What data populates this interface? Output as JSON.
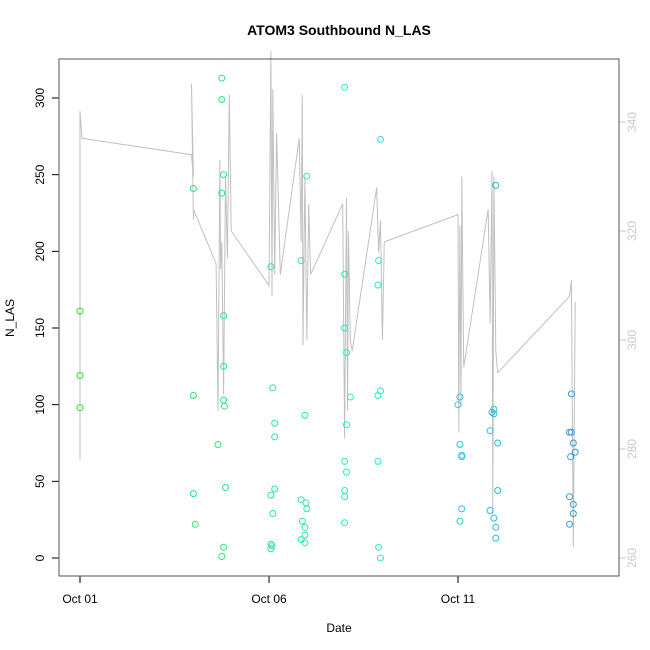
{
  "chart_data": {
    "type": "scatter",
    "title": "ATOM3 Southbound N_LAS",
    "xlabel": "Date",
    "ylabel": "N_LAS",
    "x_ticks": [
      {
        "day": 1,
        "label": "Oct 01"
      },
      {
        "day": 6,
        "label": "Oct 06"
      },
      {
        "day": 11,
        "label": "Oct 11"
      }
    ],
    "xlim": [
      1,
      15.5
    ],
    "ylim": [
      0,
      320
    ],
    "y_ticks": [
      0,
      50,
      100,
      150,
      200,
      250,
      300
    ],
    "y2lim": [
      260,
      344
    ],
    "y2_ticks": [
      260,
      280,
      300,
      320,
      340
    ],
    "grid": false,
    "legend": "none",
    "colors": {
      "points_start": "#33dd33",
      "points_mid": "#22eecc",
      "points_end": "#3399dd",
      "line": "#c0c0c0",
      "frame": "#555555"
    },
    "points": [
      {
        "x": 1.0,
        "y": 161
      },
      {
        "x": 1.0,
        "y": 119
      },
      {
        "x": 1.0,
        "y": 98
      },
      {
        "x": 4.0,
        "y": 241
      },
      {
        "x": 4.0,
        "y": 106
      },
      {
        "x": 4.0,
        "y": 42
      },
      {
        "x": 4.05,
        "y": 22
      },
      {
        "x": 4.75,
        "y": 313
      },
      {
        "x": 4.75,
        "y": 299
      },
      {
        "x": 4.8,
        "y": 250
      },
      {
        "x": 4.75,
        "y": 238
      },
      {
        "x": 4.8,
        "y": 158
      },
      {
        "x": 4.8,
        "y": 125
      },
      {
        "x": 4.8,
        "y": 103
      },
      {
        "x": 4.82,
        "y": 99
      },
      {
        "x": 4.65,
        "y": 74
      },
      {
        "x": 4.85,
        "y": 46
      },
      {
        "x": 4.8,
        "y": 7
      },
      {
        "x": 4.75,
        "y": 1
      },
      {
        "x": 6.05,
        "y": 190
      },
      {
        "x": 6.1,
        "y": 111
      },
      {
        "x": 6.15,
        "y": 88
      },
      {
        "x": 6.15,
        "y": 79
      },
      {
        "x": 6.15,
        "y": 45
      },
      {
        "x": 6.05,
        "y": 41
      },
      {
        "x": 6.1,
        "y": 29
      },
      {
        "x": 6.05,
        "y": 9
      },
      {
        "x": 6.08,
        "y": 8
      },
      {
        "x": 6.05,
        "y": 6
      },
      {
        "x": 6.85,
        "y": 194
      },
      {
        "x": 7.0,
        "y": 249
      },
      {
        "x": 6.95,
        "y": 93
      },
      {
        "x": 6.85,
        "y": 38
      },
      {
        "x": 6.98,
        "y": 36
      },
      {
        "x": 7.0,
        "y": 32
      },
      {
        "x": 6.88,
        "y": 24
      },
      {
        "x": 6.95,
        "y": 20
      },
      {
        "x": 6.95,
        "y": 15
      },
      {
        "x": 6.85,
        "y": 12
      },
      {
        "x": 6.95,
        "y": 10
      },
      {
        "x": 8.0,
        "y": 307
      },
      {
        "x": 8.0,
        "y": 185
      },
      {
        "x": 8.0,
        "y": 150
      },
      {
        "x": 8.05,
        "y": 134
      },
      {
        "x": 8.15,
        "y": 105
      },
      {
        "x": 8.05,
        "y": 87
      },
      {
        "x": 8.0,
        "y": 63
      },
      {
        "x": 8.05,
        "y": 56
      },
      {
        "x": 8.0,
        "y": 44
      },
      {
        "x": 8.0,
        "y": 40
      },
      {
        "x": 8.0,
        "y": 23
      },
      {
        "x": 8.95,
        "y": 273
      },
      {
        "x": 8.9,
        "y": 194
      },
      {
        "x": 8.88,
        "y": 178
      },
      {
        "x": 8.95,
        "y": 109
      },
      {
        "x": 8.88,
        "y": 106
      },
      {
        "x": 8.88,
        "y": 63
      },
      {
        "x": 8.9,
        "y": 7
      },
      {
        "x": 8.95,
        "y": 0
      },
      {
        "x": 11.05,
        "y": 105
      },
      {
        "x": 11.0,
        "y": 100
      },
      {
        "x": 11.05,
        "y": 74
      },
      {
        "x": 11.1,
        "y": 67
      },
      {
        "x": 11.1,
        "y": 66
      },
      {
        "x": 11.1,
        "y": 32
      },
      {
        "x": 11.05,
        "y": 24
      },
      {
        "x": 11.85,
        "y": 83
      },
      {
        "x": 11.95,
        "y": 97
      },
      {
        "x": 11.9,
        "y": 95
      },
      {
        "x": 11.95,
        "y": 94
      },
      {
        "x": 11.85,
        "y": 31
      },
      {
        "x": 11.95,
        "y": 26
      },
      {
        "x": 12.0,
        "y": 243
      },
      {
        "x": 12.05,
        "y": 75
      },
      {
        "x": 12.05,
        "y": 44
      },
      {
        "x": 12.0,
        "y": 20
      },
      {
        "x": 12.0,
        "y": 13
      },
      {
        "x": 14.0,
        "y": 107
      },
      {
        "x": 13.95,
        "y": 82
      },
      {
        "x": 14.0,
        "y": 82
      },
      {
        "x": 14.05,
        "y": 75
      },
      {
        "x": 14.1,
        "y": 69
      },
      {
        "x": 13.98,
        "y": 66
      },
      {
        "x": 13.95,
        "y": 40
      },
      {
        "x": 14.05,
        "y": 35
      },
      {
        "x": 14.05,
        "y": 29
      },
      {
        "x": 13.95,
        "y": 22
      }
    ],
    "line_series": [
      {
        "x": 1.0,
        "y2": 278
      },
      {
        "x": 1.0,
        "y2": 342
      },
      {
        "x": 1.05,
        "y2": 337
      },
      {
        "x": 3.95,
        "y2": 334
      },
      {
        "x": 4.0,
        "y2": 330
      },
      {
        "x": 3.95,
        "y2": 347
      },
      {
        "x": 4.0,
        "y2": 322
      },
      {
        "x": 4.0,
        "y2": 324
      },
      {
        "x": 4.6,
        "y2": 314
      },
      {
        "x": 4.65,
        "y2": 287
      },
      {
        "x": 4.7,
        "y2": 333
      },
      {
        "x": 4.72,
        "y2": 313
      },
      {
        "x": 4.75,
        "y2": 318
      },
      {
        "x": 4.8,
        "y2": 290
      },
      {
        "x": 4.85,
        "y2": 330
      },
      {
        "x": 4.9,
        "y2": 315
      },
      {
        "x": 4.95,
        "y2": 345
      },
      {
        "x": 5.0,
        "y2": 320
      },
      {
        "x": 6.0,
        "y2": 310
      },
      {
        "x": 6.05,
        "y2": 353
      },
      {
        "x": 6.08,
        "y2": 308
      },
      {
        "x": 6.1,
        "y2": 346
      },
      {
        "x": 6.15,
        "y2": 312
      },
      {
        "x": 6.2,
        "y2": 338
      },
      {
        "x": 6.3,
        "y2": 312
      },
      {
        "x": 6.8,
        "y2": 337
      },
      {
        "x": 6.85,
        "y2": 318
      },
      {
        "x": 6.88,
        "y2": 345
      },
      {
        "x": 6.9,
        "y2": 299
      },
      {
        "x": 6.95,
        "y2": 330
      },
      {
        "x": 7.0,
        "y2": 300
      },
      {
        "x": 7.05,
        "y2": 325
      },
      {
        "x": 7.1,
        "y2": 312
      },
      {
        "x": 7.95,
        "y2": 325
      },
      {
        "x": 8.0,
        "y2": 282
      },
      {
        "x": 8.05,
        "y2": 326
      },
      {
        "x": 8.08,
        "y2": 287
      },
      {
        "x": 8.1,
        "y2": 320
      },
      {
        "x": 8.15,
        "y2": 300
      },
      {
        "x": 8.2,
        "y2": 298
      },
      {
        "x": 8.85,
        "y2": 328
      },
      {
        "x": 8.9,
        "y2": 316
      },
      {
        "x": 8.95,
        "y2": 322
      },
      {
        "x": 9.0,
        "y2": 300
      },
      {
        "x": 9.05,
        "y2": 318
      },
      {
        "x": 11.0,
        "y2": 323
      },
      {
        "x": 11.02,
        "y2": 283
      },
      {
        "x": 11.05,
        "y2": 321
      },
      {
        "x": 11.08,
        "y2": 288
      },
      {
        "x": 11.1,
        "y2": 330
      },
      {
        "x": 11.15,
        "y2": 295
      },
      {
        "x": 11.8,
        "y2": 324
      },
      {
        "x": 11.85,
        "y2": 303
      },
      {
        "x": 11.9,
        "y2": 331
      },
      {
        "x": 11.92,
        "y2": 268
      },
      {
        "x": 11.95,
        "y2": 330
      },
      {
        "x": 12.0,
        "y2": 298
      },
      {
        "x": 12.05,
        "y2": 294
      },
      {
        "x": 13.95,
        "y2": 308
      },
      {
        "x": 14.0,
        "y2": 311
      },
      {
        "x": 14.05,
        "y2": 262
      },
      {
        "x": 14.1,
        "y2": 307
      }
    ]
  }
}
